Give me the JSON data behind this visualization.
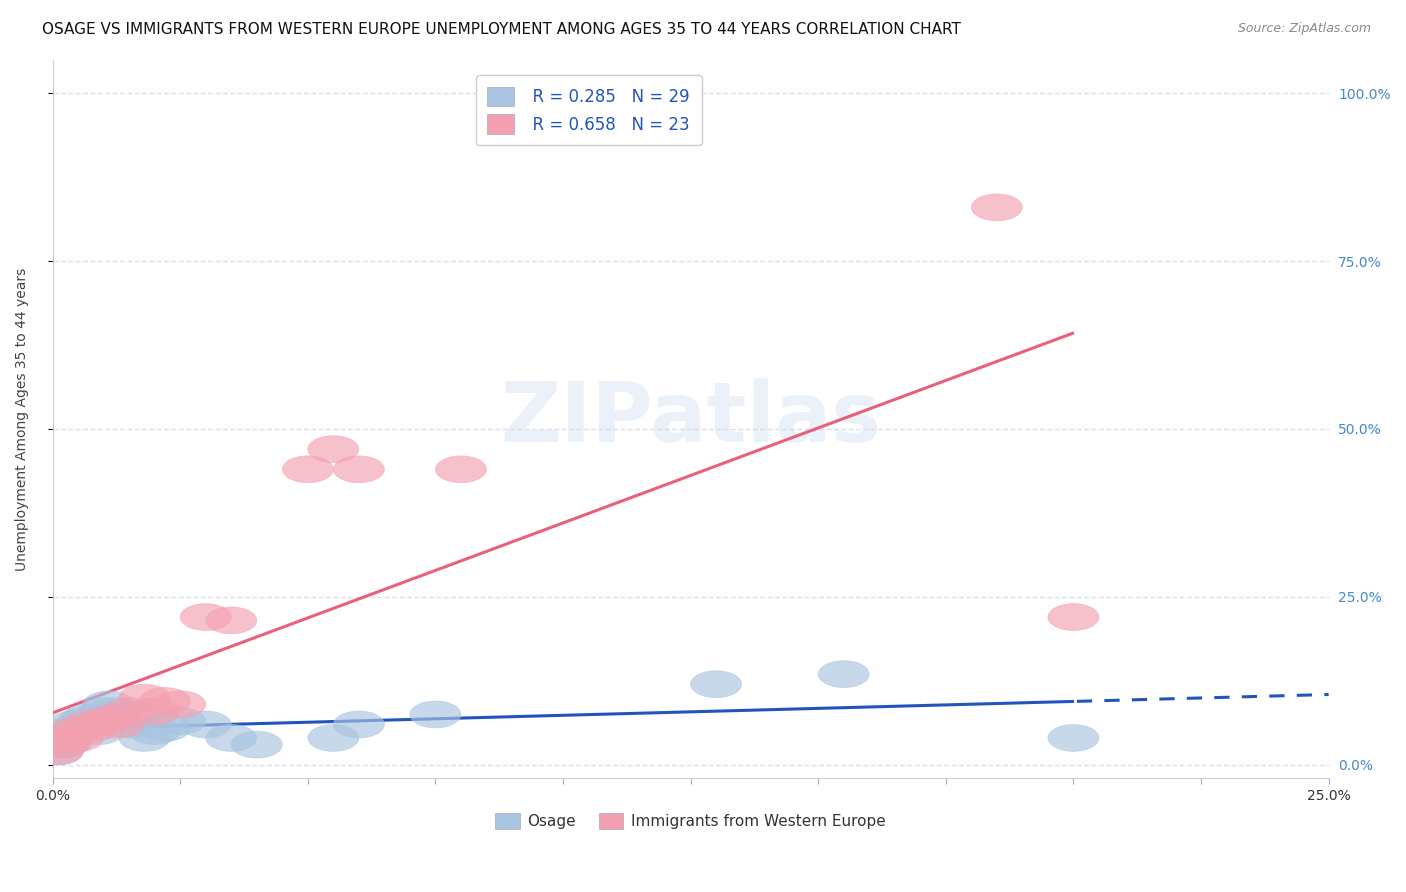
{
  "title": "OSAGE VS IMMIGRANTS FROM WESTERN EUROPE UNEMPLOYMENT AMONG AGES 35 TO 44 YEARS CORRELATION CHART",
  "source": "Source: ZipAtlas.com",
  "ylabel": "Unemployment Among Ages 35 to 44 years",
  "watermark": "ZIPatlas",
  "xlim": [
    0.0,
    0.25
  ],
  "ylim": [
    -0.02,
    1.05
  ],
  "yticks": [
    0.0,
    0.25,
    0.5,
    0.75,
    1.0
  ],
  "ytick_labels_right": [
    "0.0%",
    "25.0%",
    "50.0%",
    "75.0%",
    "100.0%"
  ],
  "xtick_labels": [
    "0.0%",
    "",
    "",
    "",
    "",
    "",
    "",
    "",
    "",
    "",
    "25.0%"
  ],
  "xticks": [
    0.0,
    0.025,
    0.05,
    0.075,
    0.1,
    0.125,
    0.15,
    0.175,
    0.2,
    0.225,
    0.25
  ],
  "osage_R": 0.285,
  "osage_N": 29,
  "immigrants_R": 0.658,
  "immigrants_N": 23,
  "osage_color": "#a8c4e0",
  "immigrants_color": "#f4a0b0",
  "osage_line_color": "#2255bb",
  "immigrants_line_color": "#e8607a",
  "legend_text_color": "#2255bb",
  "osage_x": [
    0.001,
    0.002,
    0.002,
    0.003,
    0.003,
    0.004,
    0.005,
    0.006,
    0.007,
    0.008,
    0.009,
    0.01,
    0.011,
    0.012,
    0.015,
    0.016,
    0.018,
    0.02,
    0.022,
    0.025,
    0.03,
    0.035,
    0.04,
    0.055,
    0.06,
    0.075,
    0.13,
    0.155,
    0.2
  ],
  "osage_y": [
    0.02,
    0.03,
    0.045,
    0.035,
    0.05,
    0.06,
    0.055,
    0.065,
    0.07,
    0.065,
    0.05,
    0.08,
    0.09,
    0.08,
    0.06,
    0.075,
    0.04,
    0.05,
    0.055,
    0.065,
    0.06,
    0.04,
    0.03,
    0.04,
    0.06,
    0.075,
    0.12,
    0.135,
    0.04
  ],
  "immigrants_x": [
    0.001,
    0.002,
    0.003,
    0.004,
    0.005,
    0.007,
    0.008,
    0.01,
    0.012,
    0.013,
    0.015,
    0.018,
    0.02,
    0.022,
    0.025,
    0.03,
    0.035,
    0.05,
    0.055,
    0.06,
    0.08,
    0.185,
    0.2
  ],
  "immigrants_y": [
    0.02,
    0.03,
    0.04,
    0.05,
    0.04,
    0.06,
    0.055,
    0.065,
    0.07,
    0.06,
    0.08,
    0.1,
    0.08,
    0.095,
    0.09,
    0.22,
    0.215,
    0.44,
    0.47,
    0.44,
    0.44,
    0.83,
    0.22
  ],
  "background_color": "#ffffff",
  "grid_color": "#ddddee",
  "title_fontsize": 11,
  "axis_label_fontsize": 10,
  "tick_fontsize": 10,
  "right_tick_color": "#4488cc"
}
